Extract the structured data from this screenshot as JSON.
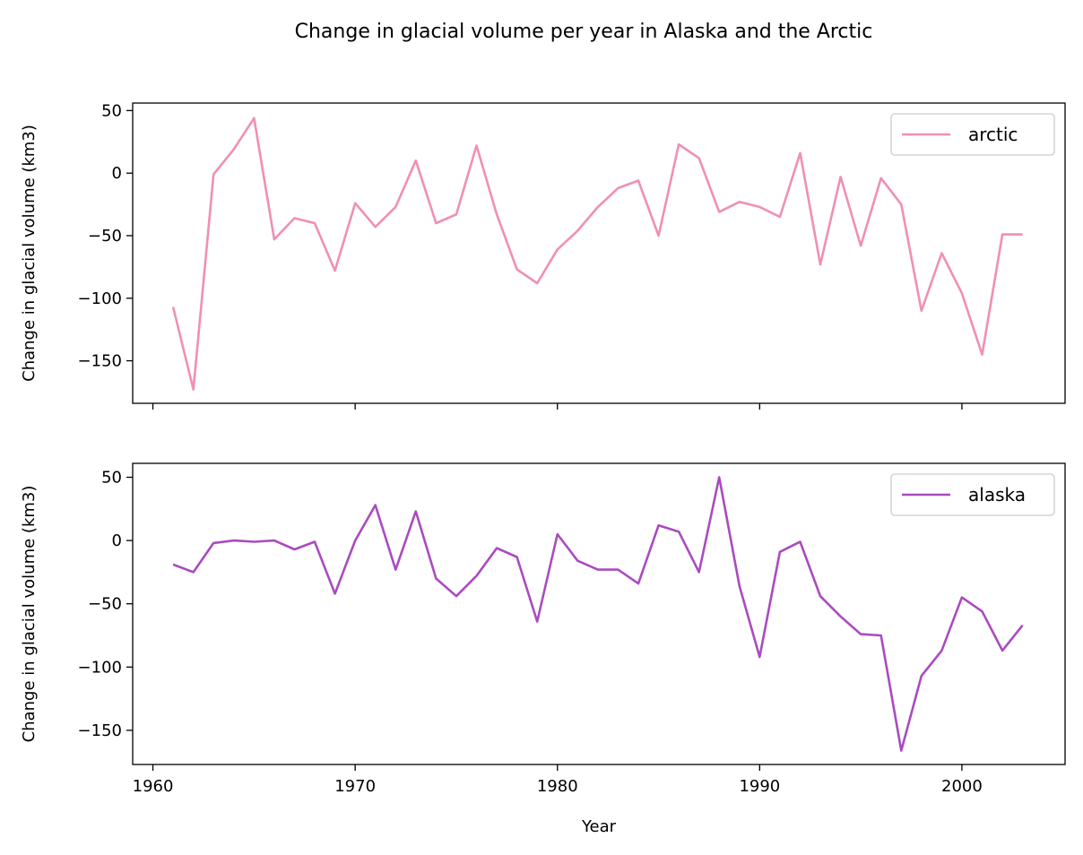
{
  "chart_data": {
    "type": "line",
    "title": "Change in glacial volume per year in Alaska and the Arctic",
    "xlabel": "Year",
    "xlim": [
      1959,
      2005.1
    ],
    "xticks": [
      1960,
      1970,
      1980,
      1990,
      2000
    ],
    "xtick_labels": [
      "1960",
      "1970",
      "1980",
      "1990",
      "2000"
    ],
    "x": [
      1961,
      1962,
      1963,
      1964,
      1965,
      1966,
      1967,
      1968,
      1969,
      1970,
      1971,
      1972,
      1973,
      1974,
      1975,
      1976,
      1977,
      1978,
      1979,
      1980,
      1981,
      1982,
      1983,
      1984,
      1985,
      1986,
      1987,
      1988,
      1989,
      1990,
      1991,
      1992,
      1993,
      1994,
      1995,
      1996,
      1997,
      1998,
      1999,
      2000,
      2001,
      2002,
      2003
    ],
    "panels": [
      {
        "ylabel": "Change in glacial volume (km3)",
        "ylim": [
          -184,
          56
        ],
        "yticks": [
          50,
          0,
          -50,
          -100,
          -150
        ],
        "ytick_labels": [
          "50",
          "0",
          "−50",
          "−100",
          "−150"
        ],
        "legend_position": "top-right",
        "series": [
          {
            "name": "arctic",
            "color": "#f08fb5",
            "values": [
              -107,
              -173,
              -1,
              19,
              44,
              -53,
              -36,
              -40,
              -78,
              -24,
              -43,
              -27,
              10,
              -40,
              -33,
              22,
              -33,
              -77,
              -88,
              -61,
              -46,
              -27,
              -12,
              -6,
              -50,
              23,
              12,
              -31,
              -23,
              -27,
              -35,
              16,
              -73,
              -3,
              -58,
              -4,
              -25,
              -110,
              -64,
              -96,
              -145,
              -49,
              -49
            ]
          }
        ]
      },
      {
        "ylabel": "Change in glacial volume (km3)",
        "ylim": [
          -177,
          61
        ],
        "yticks": [
          50,
          0,
          -50,
          -100,
          -150
        ],
        "ytick_labels": [
          "50",
          "0",
          "−50",
          "−100",
          "−150"
        ],
        "legend_position": "top-right",
        "series": [
          {
            "name": "alaska",
            "color": "#aa4bbf",
            "values": [
              -19,
              -25,
              -2,
              0,
              -1,
              0,
              -7,
              -1,
              -42,
              0,
              28,
              -23,
              23,
              -30,
              -44,
              -28,
              -6,
              -13,
              -64,
              5,
              -16,
              -23,
              -23,
              -34,
              12,
              7,
              -25,
              50,
              -36,
              -92,
              -9,
              -1,
              -44,
              -60,
              -74,
              -75,
              -166,
              -107,
              -87,
              -45,
              -56,
              -87,
              -67
            ]
          }
        ]
      }
    ]
  }
}
